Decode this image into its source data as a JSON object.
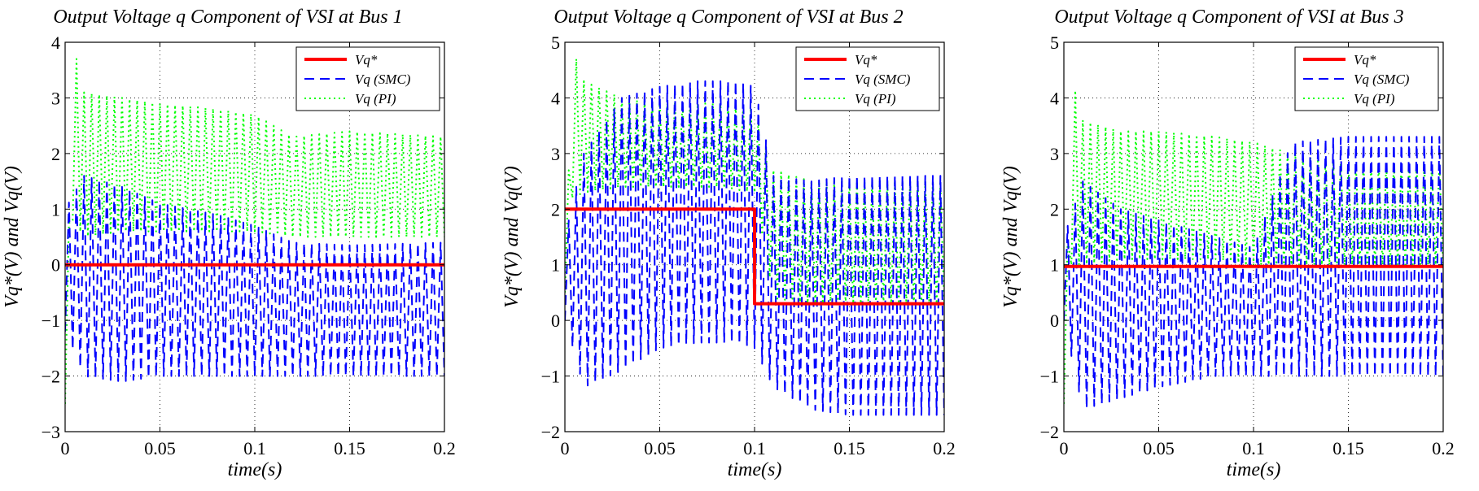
{
  "chart_data": [
    {
      "type": "line",
      "title": "Output Voltage q Component of VSI at Bus 1",
      "xlabel": "time(s)",
      "ylabel": "Vq*(V) and Vq(V)",
      "xlim": [
        0,
        0.2
      ],
      "ylim": [
        -3,
        4
      ],
      "xticks": [
        0,
        0.05,
        0.1,
        0.15,
        0.2
      ],
      "xtick_labels": [
        "0",
        "0.05",
        "0.1",
        "0.15",
        "0.2"
      ],
      "yticks": [
        -3,
        -2,
        -1,
        0,
        1,
        2,
        3,
        4
      ],
      "ytick_labels": [
        "−3",
        "−2",
        "−1",
        "0",
        "1",
        "2",
        "3",
        "4"
      ],
      "grid": true,
      "legend_position": "top-right",
      "series": [
        {
          "name": "Vq*",
          "style": "solid",
          "color": "#ff0000",
          "x": [
            0,
            0.2
          ],
          "y": [
            0,
            0
          ]
        },
        {
          "name": "Vq (SMC)",
          "style": "dashed",
          "color": "#0000ff",
          "oscillation_period_s": 0.004,
          "x": [
            0,
            0.01,
            0.03,
            0.05,
            0.08,
            0.1,
            0.12,
            0.15,
            0.2
          ],
          "y_upper": [
            1.0,
            1.6,
            1.4,
            1.1,
            0.9,
            0.7,
            0.4,
            0.35,
            0.4
          ],
          "y_lower": [
            -1.2,
            -2.0,
            -2.1,
            -2.0,
            -2.0,
            -2.0,
            -2.0,
            -2.0,
            -2.0
          ]
        },
        {
          "name": "Vq (PI)",
          "style": "dotted",
          "color": "#00ff00",
          "oscillation_period_s": 0.004,
          "x": [
            0,
            0.004,
            0.01,
            0.03,
            0.05,
            0.08,
            0.1,
            0.12,
            0.15,
            0.2
          ],
          "y_upper": [
            -2.5,
            4.0,
            3.1,
            3.0,
            2.9,
            2.8,
            2.7,
            2.3,
            2.4,
            2.3
          ],
          "y_lower": [
            -2.5,
            0.8,
            0.5,
            0.6,
            0.6,
            0.6,
            0.6,
            0.5,
            0.5,
            0.5
          ]
        }
      ]
    },
    {
      "type": "line",
      "title": "Output Voltage q Component of VSI at Bus 2",
      "xlabel": "time(s)",
      "ylabel": "Vq*(V) and Vq(V)",
      "xlim": [
        0,
        0.2
      ],
      "ylim": [
        -2,
        5
      ],
      "xticks": [
        0,
        0.05,
        0.1,
        0.15,
        0.2
      ],
      "xtick_labels": [
        "0",
        "0.05",
        "0.1",
        "0.15",
        "0.2"
      ],
      "yticks": [
        -2,
        -1,
        0,
        1,
        2,
        3,
        4,
        5
      ],
      "ytick_labels": [
        "−2",
        "−1",
        "0",
        "1",
        "2",
        "3",
        "4",
        "5"
      ],
      "grid": true,
      "legend_position": "top-right",
      "series": [
        {
          "name": "Vq*",
          "style": "solid",
          "color": "#ff0000",
          "x": [
            0,
            0.1,
            0.1,
            0.2
          ],
          "y": [
            2.0,
            2.0,
            0.3,
            0.3
          ]
        },
        {
          "name": "Vq (SMC)",
          "style": "dashed",
          "color": "#0000ff",
          "oscillation_period_s": 0.004,
          "x": [
            0,
            0.01,
            0.03,
            0.05,
            0.07,
            0.09,
            0.1,
            0.11,
            0.13,
            0.15,
            0.18,
            0.2
          ],
          "y_upper": [
            1.5,
            3.0,
            4.0,
            4.2,
            4.3,
            4.3,
            4.2,
            2.6,
            2.5,
            2.6,
            2.6,
            2.6
          ],
          "y_lower": [
            0.0,
            -1.2,
            -0.9,
            -0.5,
            -0.4,
            -0.4,
            -0.5,
            -1.2,
            -1.6,
            -1.7,
            -1.7,
            -1.7
          ]
        },
        {
          "name": "Vq (PI)",
          "style": "dotted",
          "color": "#00ff00",
          "oscillation_period_s": 0.004,
          "x": [
            0,
            0.004,
            0.01,
            0.03,
            0.05,
            0.08,
            0.1,
            0.11,
            0.13,
            0.15,
            0.2
          ],
          "y_upper": [
            0.5,
            4.9,
            4.3,
            4.0,
            3.9,
            3.9,
            3.8,
            2.7,
            2.5,
            2.5,
            2.5
          ],
          "y_lower": [
            0.5,
            2.2,
            2.3,
            2.4,
            2.4,
            2.4,
            2.3,
            0.4,
            0.3,
            0.3,
            0.3
          ]
        }
      ]
    },
    {
      "type": "line",
      "title": "Output Voltage q Component of VSI at Bus 3",
      "xlabel": "time(s)",
      "ylabel": "Vq*(V) and Vq(V)",
      "xlim": [
        0,
        0.2
      ],
      "ylim": [
        -2,
        5
      ],
      "xticks": [
        0,
        0.05,
        0.1,
        0.15,
        0.2
      ],
      "xtick_labels": [
        "0",
        "0.05",
        "0.1",
        "0.15",
        "0.2"
      ],
      "yticks": [
        -2,
        -1,
        0,
        1,
        2,
        3,
        4,
        5
      ],
      "ytick_labels": [
        "−2",
        "−1",
        "0",
        "1",
        "2",
        "3",
        "4",
        "5"
      ],
      "grid": true,
      "legend_position": "top-right",
      "series": [
        {
          "name": "Vq*",
          "style": "solid",
          "color": "#ff0000",
          "x": [
            0,
            0.2
          ],
          "y": [
            0.97,
            0.97
          ]
        },
        {
          "name": "Vq (SMC)",
          "style": "dashed",
          "color": "#0000ff",
          "oscillation_period_s": 0.004,
          "x": [
            0,
            0.01,
            0.03,
            0.05,
            0.08,
            0.1,
            0.12,
            0.15,
            0.2
          ],
          "y_upper": [
            1.5,
            2.5,
            2.0,
            1.8,
            1.5,
            1.3,
            3.2,
            3.3,
            3.3
          ],
          "y_lower": [
            0.0,
            -1.6,
            -1.4,
            -1.2,
            -1.0,
            -1.0,
            -1.0,
            -1.0,
            -1.0
          ]
        },
        {
          "name": "Vq (PI)",
          "style": "dotted",
          "color": "#00ff00",
          "oscillation_period_s": 0.004,
          "x": [
            0,
            0.004,
            0.01,
            0.03,
            0.05,
            0.08,
            0.1,
            0.12,
            0.15,
            0.2
          ],
          "y_upper": [
            -1.5,
            4.4,
            3.6,
            3.4,
            3.4,
            3.3,
            3.2,
            3.0,
            2.8,
            2.8
          ],
          "y_lower": [
            -1.5,
            1.0,
            1.0,
            1.1,
            1.1,
            1.1,
            1.0,
            1.0,
            1.0,
            1.0
          ]
        }
      ]
    }
  ]
}
